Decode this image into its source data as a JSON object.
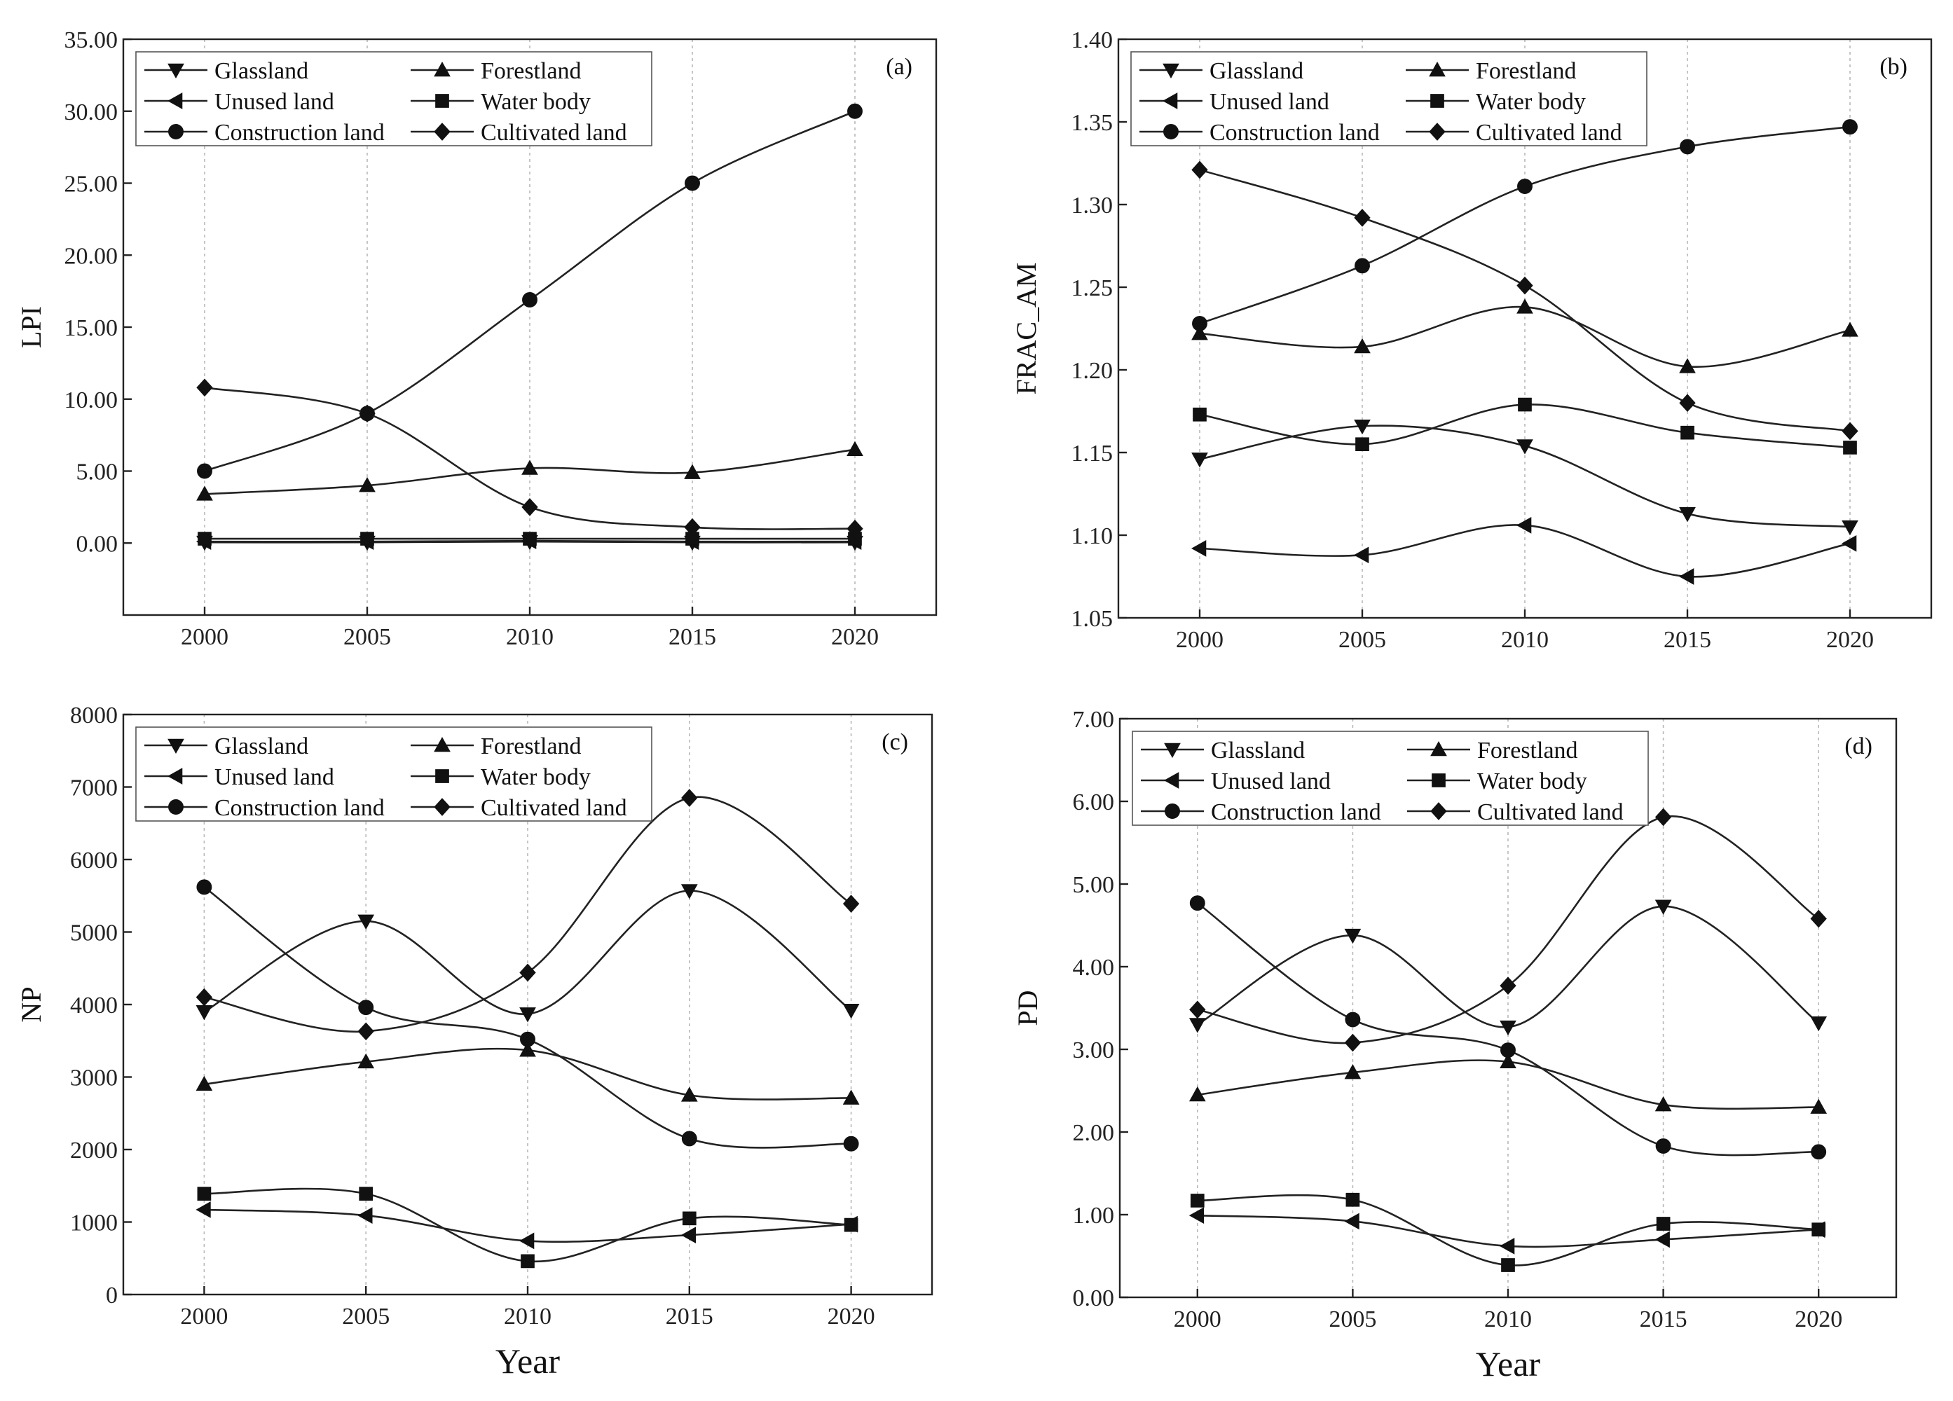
{
  "figure": {
    "x_title": "Year"
  },
  "series_names": {
    "glassland": "Glassland",
    "forestland": "Forestland",
    "unused": "Unused land",
    "water": "Water body",
    "construction": "Construction land",
    "cultivated": "Cultivated land"
  },
  "legend_order": [
    "glassland",
    "forestland",
    "unused",
    "water",
    "construction",
    "cultivated"
  ],
  "chart_data": [
    {
      "type": "line",
      "panel": "(a)",
      "title": "",
      "xlabel": "",
      "ylabel": "LPI",
      "x": [
        2000,
        2005,
        2010,
        2015,
        2020
      ],
      "x_ticks": [
        "2000",
        "2005",
        "2010",
        "2015",
        "2020"
      ],
      "ylim": [
        -5,
        35
      ],
      "y_ticks": [
        "0.00",
        "5.00",
        "10.00",
        "15.00",
        "20.00",
        "25.00",
        "30.00",
        "35.00"
      ],
      "legend_position": "top-left",
      "series": [
        {
          "key": "glassland",
          "name": "Glassland",
          "values": [
            0.05,
            0.05,
            0.1,
            0.05,
            0.05
          ]
        },
        {
          "key": "forestland",
          "name": "Forestland",
          "values": [
            3.4,
            4.0,
            5.2,
            4.9,
            6.5
          ]
        },
        {
          "key": "unused",
          "name": "Unused land",
          "values": [
            0.1,
            0.1,
            0.15,
            0.1,
            0.1
          ]
        },
        {
          "key": "water",
          "name": "Water body",
          "values": [
            0.3,
            0.3,
            0.3,
            0.3,
            0.3
          ]
        },
        {
          "key": "construction",
          "name": "Construction land",
          "values": [
            5.0,
            9.0,
            16.9,
            25.0,
            30.0
          ]
        },
        {
          "key": "cultivated",
          "name": "Cultivated land",
          "values": [
            10.8,
            9.0,
            2.5,
            1.1,
            1.0
          ]
        }
      ]
    },
    {
      "type": "line",
      "panel": "(b)",
      "title": "",
      "xlabel": "",
      "ylabel": "FRAC_AM",
      "x": [
        2000,
        2005,
        2010,
        2015,
        2020
      ],
      "x_ticks": [
        "2000",
        "2005",
        "2010",
        "2015",
        "2020"
      ],
      "ylim": [
        1.05,
        1.4
      ],
      "y_ticks": [
        "1.05",
        "1.10",
        "1.15",
        "1.20",
        "1.25",
        "1.30",
        "1.35",
        "1.40"
      ],
      "legend_position": "top-left",
      "series": [
        {
          "key": "glassland",
          "name": "Glassland",
          "values": [
            1.146,
            1.166,
            1.154,
            1.113,
            1.105
          ]
        },
        {
          "key": "forestland",
          "name": "Forestland",
          "values": [
            1.222,
            1.214,
            1.238,
            1.202,
            1.224
          ]
        },
        {
          "key": "unused",
          "name": "Unused land",
          "values": [
            1.092,
            1.088,
            1.106,
            1.075,
            1.095
          ]
        },
        {
          "key": "water",
          "name": "Water body",
          "values": [
            1.173,
            1.155,
            1.179,
            1.162,
            1.153
          ]
        },
        {
          "key": "construction",
          "name": "Construction land",
          "values": [
            1.228,
            1.263,
            1.311,
            1.335,
            1.347
          ]
        },
        {
          "key": "cultivated",
          "name": "Cultivated land",
          "values": [
            1.321,
            1.292,
            1.251,
            1.18,
            1.163
          ]
        }
      ]
    },
    {
      "type": "line",
      "panel": "(c)",
      "title": "",
      "xlabel": "Year",
      "ylabel": "NP",
      "x": [
        2000,
        2005,
        2010,
        2015,
        2020
      ],
      "x_ticks": [
        "2000",
        "2005",
        "2010",
        "2015",
        "2020"
      ],
      "ylim": [
        0,
        8000
      ],
      "y_ticks": [
        "0",
        "1000",
        "2000",
        "3000",
        "4000",
        "5000",
        "6000",
        "7000",
        "8000"
      ],
      "legend_position": "top-left",
      "series": [
        {
          "key": "glassland",
          "name": "Glassland",
          "values": [
            3900,
            5150,
            3870,
            5570,
            3920
          ]
        },
        {
          "key": "forestland",
          "name": "Forestland",
          "values": [
            2900,
            3210,
            3370,
            2750,
            2710
          ]
        },
        {
          "key": "unused",
          "name": "Unused land",
          "values": [
            1170,
            1090,
            740,
            820,
            970
          ]
        },
        {
          "key": "water",
          "name": "Water body",
          "values": [
            1390,
            1390,
            460,
            1050,
            960
          ]
        },
        {
          "key": "construction",
          "name": "Construction land",
          "values": [
            5620,
            3960,
            3520,
            2150,
            2080
          ]
        },
        {
          "key": "cultivated",
          "name": "Cultivated land",
          "values": [
            4100,
            3630,
            4440,
            6850,
            5390
          ]
        }
      ]
    },
    {
      "type": "line",
      "panel": "(d)",
      "title": "",
      "xlabel": "Year",
      "ylabel": "PD",
      "x": [
        2000,
        2005,
        2010,
        2015,
        2020
      ],
      "x_ticks": [
        "2000",
        "2005",
        "2010",
        "2015",
        "2020"
      ],
      "ylim": [
        0,
        7
      ],
      "y_ticks": [
        "0.00",
        "1.00",
        "2.00",
        "3.00",
        "4.00",
        "5.00",
        "6.00",
        "7.00"
      ],
      "legend_position": "top-left",
      "series": [
        {
          "key": "glassland",
          "name": "Glassland",
          "values": [
            3.3,
            4.38,
            3.27,
            4.73,
            3.32
          ]
        },
        {
          "key": "forestland",
          "name": "Forestland",
          "values": [
            2.45,
            2.72,
            2.85,
            2.33,
            2.3
          ]
        },
        {
          "key": "unused",
          "name": "Unused land",
          "values": [
            0.99,
            0.92,
            0.62,
            0.7,
            0.82
          ]
        },
        {
          "key": "water",
          "name": "Water body",
          "values": [
            1.17,
            1.18,
            0.39,
            0.89,
            0.82
          ]
        },
        {
          "key": "construction",
          "name": "Construction land",
          "values": [
            4.77,
            3.36,
            2.99,
            1.83,
            1.76
          ]
        },
        {
          "key": "cultivated",
          "name": "Cultivated land",
          "values": [
            3.48,
            3.08,
            3.77,
            5.81,
            4.58
          ]
        }
      ]
    }
  ]
}
